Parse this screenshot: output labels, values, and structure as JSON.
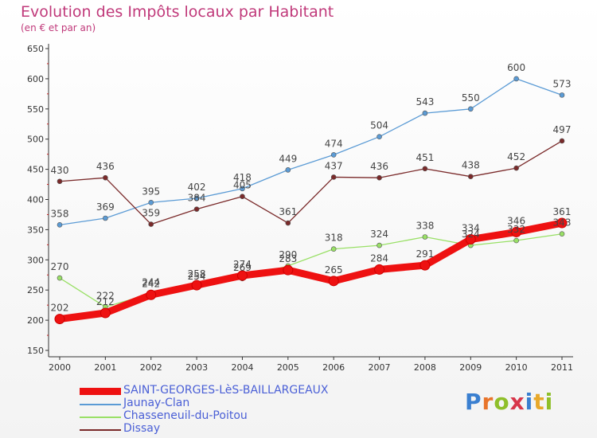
{
  "title": "Evolution des Impôts locaux par Habitant",
  "subtitle": "(en € et par an)",
  "logo_text": "Proxiti",
  "colors": {
    "title": "#c0397a",
    "axis": "#333333",
    "grid_ticks": "#cc2222",
    "legend_text": "#4a5fd6"
  },
  "chart_data": {
    "type": "line",
    "title": "Evolution des Impôts locaux par Habitant",
    "subtitle": "(en € et par an)",
    "xlabel": "",
    "ylabel": "",
    "x": [
      "2000",
      "2001",
      "2002",
      "2003",
      "2004",
      "2005",
      "2006",
      "2007",
      "2008",
      "2009",
      "2010",
      "2011"
    ],
    "y_ticks": [
      "650",
      "600",
      "550",
      "500",
      "450",
      "400",
      "350",
      "300",
      "250",
      "200",
      "150"
    ],
    "ylim": [
      150,
      650
    ],
    "grid": false,
    "legend_position": "bottom-left",
    "series": [
      {
        "name": "SAINT-GEORGES-LèS-BAILLARGEAUX",
        "color": "#ee1111",
        "values": [
          202,
          212,
          242,
          258,
          274,
          283,
          265,
          284,
          291,
          334,
          346,
          361
        ],
        "labels": [
          "202",
          "212",
          "242",
          "258",
          "274",
          "283",
          "265",
          "284",
          "291",
          "334",
          "346",
          "361"
        ]
      },
      {
        "name": "Jaunay-Clan",
        "color": "#5b9bd5",
        "values": [
          358,
          369,
          395,
          402,
          418,
          449,
          474,
          504,
          543,
          550,
          600,
          573
        ],
        "labels": [
          "358",
          "369",
          "395",
          "402",
          "418",
          "449",
          "474",
          "504",
          "543",
          "550",
          "600",
          "573"
        ]
      },
      {
        "name": "Chasseneuil-du-Poitou",
        "color": "#99e066",
        "values": [
          270,
          222,
          244,
          254,
          269,
          290,
          318,
          324,
          338,
          324,
          332,
          343
        ],
        "labels": [
          "270",
          "222",
          "244",
          "254",
          "269",
          "290",
          "318",
          "324",
          "338",
          "324",
          "332",
          "343"
        ]
      },
      {
        "name": "Dissay",
        "color": "#7a2a2a",
        "values": [
          430,
          436,
          359,
          384,
          405,
          361,
          437,
          436,
          451,
          438,
          452,
          497
        ],
        "labels": [
          "430",
          "436",
          "359",
          "384",
          "405",
          "361",
          "437",
          "436",
          "451",
          "438",
          "452",
          "497"
        ]
      }
    ]
  }
}
